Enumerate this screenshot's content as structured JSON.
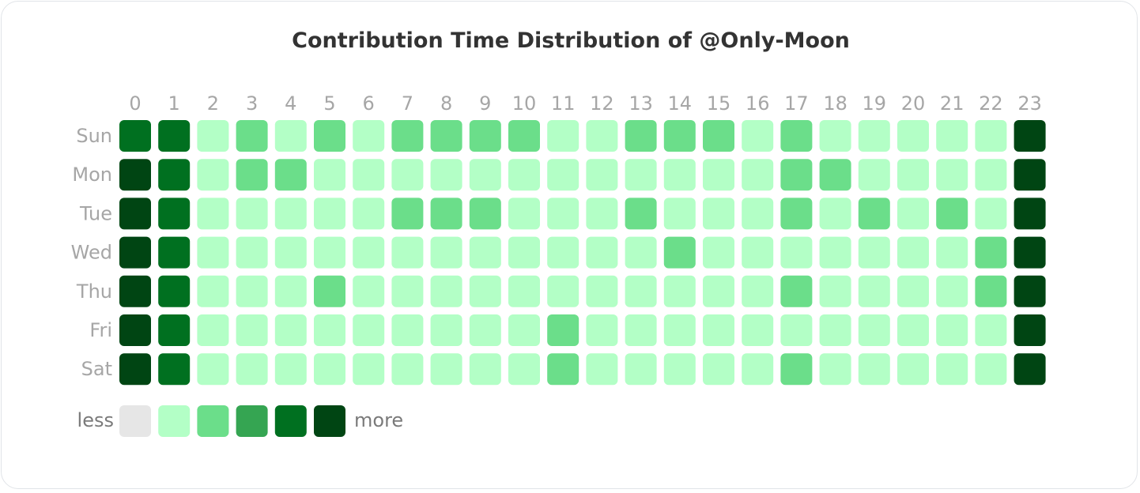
{
  "chart_data": {
    "type": "heatmap",
    "title": "Contribution Time Distribution of @Only-Moon",
    "x_categories": [
      "0",
      "1",
      "2",
      "3",
      "4",
      "5",
      "6",
      "7",
      "8",
      "9",
      "10",
      "11",
      "12",
      "13",
      "14",
      "15",
      "16",
      "17",
      "18",
      "19",
      "20",
      "21",
      "22",
      "23"
    ],
    "y_categories": [
      "Sun",
      "Mon",
      "Tue",
      "Wed",
      "Thu",
      "Fri",
      "Sat"
    ],
    "levels": [
      [
        4,
        4,
        1,
        2,
        1,
        2,
        1,
        2,
        2,
        2,
        2,
        1,
        1,
        2,
        2,
        2,
        1,
        2,
        1,
        1,
        1,
        1,
        1,
        5
      ],
      [
        5,
        4,
        1,
        2,
        2,
        1,
        1,
        1,
        1,
        1,
        1,
        1,
        1,
        1,
        1,
        1,
        1,
        2,
        2,
        1,
        1,
        1,
        1,
        5
      ],
      [
        5,
        4,
        1,
        1,
        1,
        1,
        1,
        2,
        2,
        2,
        1,
        1,
        1,
        2,
        1,
        1,
        1,
        2,
        1,
        2,
        1,
        2,
        1,
        5
      ],
      [
        5,
        4,
        1,
        1,
        1,
        1,
        1,
        1,
        1,
        1,
        1,
        1,
        1,
        1,
        2,
        1,
        1,
        1,
        1,
        1,
        1,
        1,
        2,
        5
      ],
      [
        5,
        4,
        1,
        1,
        1,
        2,
        1,
        1,
        1,
        1,
        1,
        1,
        1,
        1,
        1,
        1,
        1,
        2,
        1,
        1,
        1,
        1,
        2,
        5
      ],
      [
        5,
        4,
        1,
        1,
        1,
        1,
        1,
        1,
        1,
        1,
        1,
        2,
        1,
        1,
        1,
        1,
        1,
        1,
        1,
        1,
        1,
        1,
        1,
        5
      ],
      [
        5,
        4,
        1,
        1,
        1,
        1,
        1,
        1,
        1,
        1,
        1,
        2,
        1,
        1,
        1,
        1,
        1,
        2,
        1,
        1,
        1,
        1,
        1,
        5
      ]
    ],
    "level_colors": [
      "#e6e6e6",
      "#b3ffc6",
      "#6bde8a",
      "#35a552",
      "#007020",
      "#004513"
    ],
    "legend": {
      "less_label": "less",
      "more_label": "more"
    },
    "grid": false
  }
}
